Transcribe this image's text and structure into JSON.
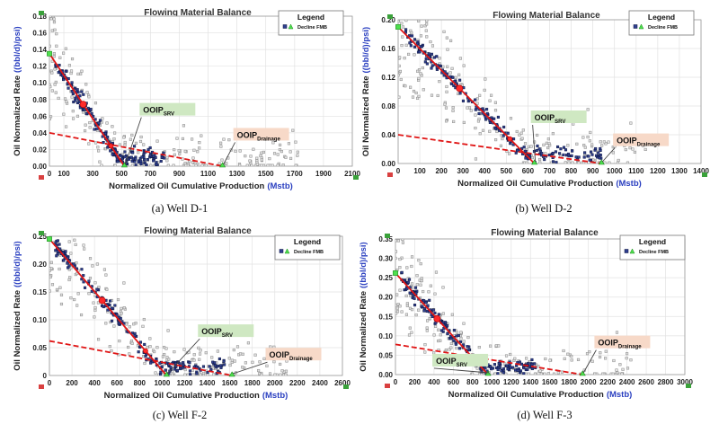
{
  "common": {
    "title": "Flowing Material Balance",
    "xlabel": "Normalized Oil Cumulative Production",
    "xunit": "(Mstb)",
    "ylabel": "Oil Normalized Rate",
    "yunit": "((bbl/d)/psi)",
    "legend_title": "Legend",
    "legend_item": "Decline FMB",
    "ooip_main": "OOIP",
    "srv_sub": "SRV",
    "drain_sub": "Drainage"
  },
  "chart_data": [
    {
      "type": "scatter",
      "caption": "(a) Well D-1",
      "xlim": [
        0,
        2100
      ],
      "xticks": [
        "0",
        "100",
        "300",
        "500",
        "700",
        "900",
        "1100",
        "1300",
        "1500",
        "1700",
        "1900",
        "2100"
      ],
      "ylim": [
        0,
        0.18
      ],
      "yticks": [
        "0.00",
        "0.02",
        "0.04",
        "0.06",
        "0.08",
        "0.10",
        "0.12",
        "0.14",
        "0.16",
        "0.18"
      ],
      "srv_line": [
        [
          0,
          0.135
        ],
        [
          520,
          0
        ]
      ],
      "drainage_line": [
        [
          0,
          0.04
        ],
        [
          1200,
          0
        ]
      ],
      "srv_label_at": [
        650,
        0.064
      ],
      "drainage_label_at": [
        1300,
        0.034
      ]
    },
    {
      "type": "scatter",
      "caption": "(b) Well D-2",
      "xlim": [
        0,
        1400
      ],
      "xticks": [
        "0",
        "100",
        "200",
        "300",
        "400",
        "500",
        "600",
        "700",
        "800",
        "900",
        "1000",
        "1100",
        "1200",
        "1300",
        "1400"
      ],
      "ylim": [
        0,
        0.2
      ],
      "yticks": [
        "0.00",
        "0.04",
        "0.08",
        "0.12",
        "0.16",
        "0.20"
      ],
      "srv_line": [
        [
          0,
          0.19
        ],
        [
          630,
          0
        ]
      ],
      "drainage_line": [
        [
          0,
          0.04
        ],
        [
          940,
          0
        ]
      ],
      "srv_label_at": [
        630,
        0.06
      ],
      "drainage_label_at": [
        1010,
        0.028
      ]
    },
    {
      "type": "scatter",
      "caption": "(c) Well F-2",
      "xlim": [
        0,
        2600
      ],
      "xticks": [
        "0",
        "200",
        "400",
        "600",
        "800",
        "1000",
        "1200",
        "1400",
        "1600",
        "1800",
        "2000",
        "2200",
        "2400",
        "2600"
      ],
      "ylim": [
        0,
        0.25
      ],
      "yticks": [
        "0",
        "0.05",
        "0.10",
        "0.15",
        "0.20",
        "0.25"
      ],
      "srv_line": [
        [
          0,
          0.245
        ],
        [
          1040,
          0
        ]
      ],
      "drainage_line": [
        [
          0,
          0.062
        ],
        [
          1620,
          0
        ]
      ],
      "srv_label_at": [
        1350,
        0.074
      ],
      "drainage_label_at": [
        1950,
        0.032
      ]
    },
    {
      "type": "scatter",
      "caption": "(d) Well F-3",
      "xlim": [
        0,
        3000
      ],
      "xticks": [
        "0",
        "200",
        "400",
        "600",
        "800",
        "1000",
        "1200",
        "1400",
        "1600",
        "1800",
        "2000",
        "2200",
        "2400",
        "2600",
        "2800",
        "3000"
      ],
      "ylim": [
        0,
        0.35
      ],
      "yticks": [
        "0.00",
        "0.05",
        "0.10",
        "0.15",
        "0.20",
        "0.25",
        "0.30",
        "0.35"
      ],
      "srv_line": [
        [
          0,
          0.262
        ],
        [
          960,
          0
        ]
      ],
      "drainage_line": [
        [
          0,
          0.078
        ],
        [
          1940,
          0
        ]
      ],
      "srv_label_at": [
        420,
        0.028
      ],
      "drainage_label_at": [
        2100,
        0.075
      ]
    }
  ]
}
